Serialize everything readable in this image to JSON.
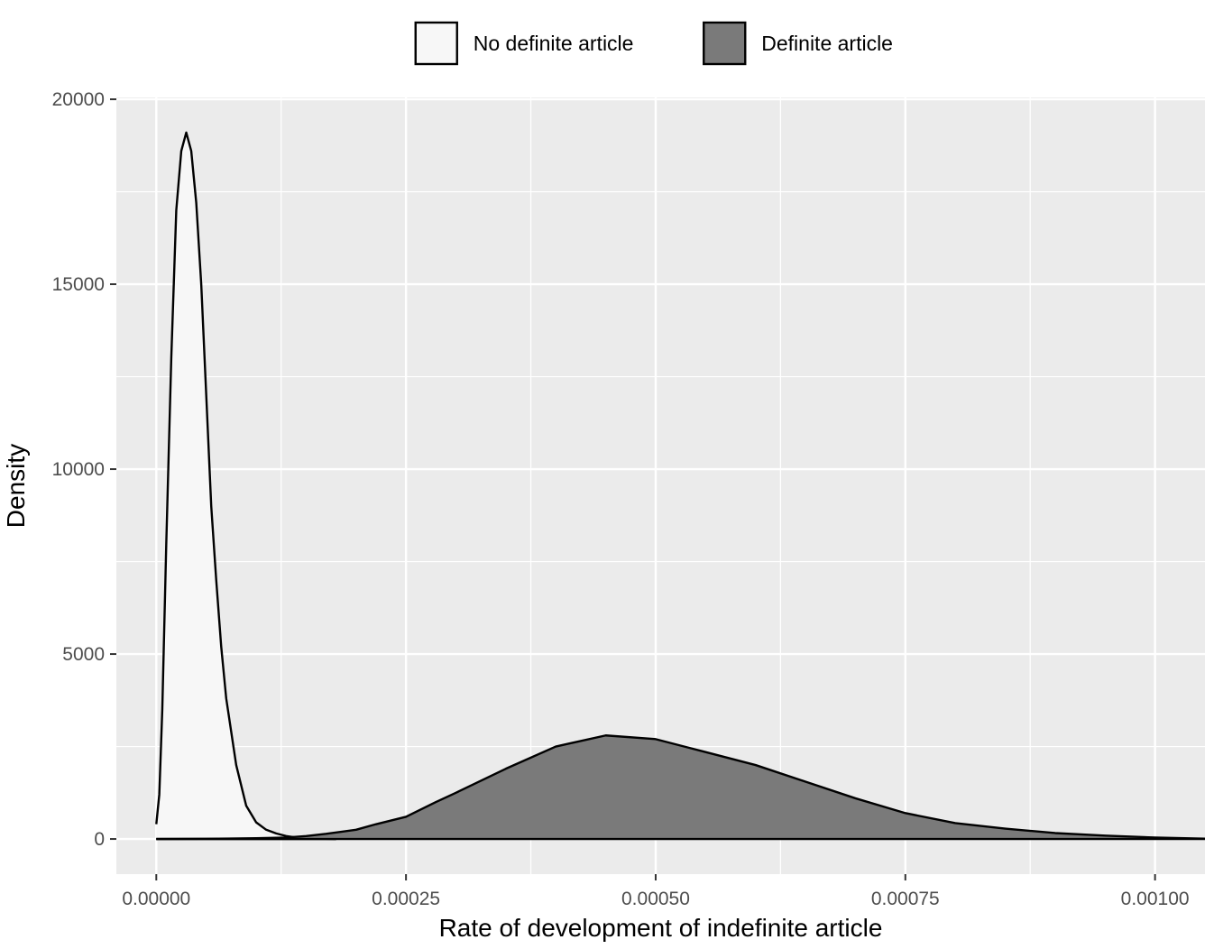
{
  "chart_data": {
    "type": "area",
    "title": "",
    "xlabel": "Rate of development of indefinite article",
    "ylabel": "Density",
    "xlim": [
      -4e-05,
      0.00105
    ],
    "ylim": [
      -950,
      20050
    ],
    "x_ticks": [
      0.0,
      0.00025,
      0.0005,
      0.00075,
      0.001
    ],
    "x_tick_labels": [
      "0.00000",
      "0.00025",
      "0.00050",
      "0.00075",
      "0.00100"
    ],
    "y_ticks": [
      0,
      5000,
      10000,
      15000,
      20000
    ],
    "y_tick_labels": [
      "0",
      "5000",
      "10000",
      "15000",
      "20000"
    ],
    "grid": true,
    "legend_position": "top",
    "panel_background": "#ebebeb",
    "series": [
      {
        "name": "No definite article",
        "fill": "#f7f7f7",
        "x": [
          0.0,
          3e-06,
          6e-06,
          1e-05,
          1.5e-05,
          2e-05,
          2.5e-05,
          3e-05,
          3.5e-05,
          4e-05,
          4.5e-05,
          5e-05,
          5.5e-05,
          6e-05,
          6.5e-05,
          7e-05,
          8e-05,
          9e-05,
          0.0001,
          0.00011,
          0.00012,
          0.00013,
          0.00014,
          0.00015,
          0.00016,
          0.00017,
          0.00018
        ],
        "y": [
          400,
          1200,
          3500,
          8000,
          13000,
          17000,
          18600,
          19100,
          18600,
          17200,
          15000,
          12000,
          9000,
          7000,
          5200,
          3800,
          2000,
          900,
          450,
          250,
          150,
          80,
          40,
          20,
          10,
          5,
          0
        ]
      },
      {
        "name": "Definite article",
        "fill": "#7a7a7a",
        "x": [
          0.0,
          5e-05,
          0.0001,
          0.00013,
          0.00015,
          0.00017,
          0.0002,
          0.00022,
          0.00025,
          0.00028,
          0.0003,
          0.00035,
          0.0004,
          0.00045,
          0.0005,
          0.00055,
          0.0006,
          0.00065,
          0.0007,
          0.00075,
          0.0008,
          0.00085,
          0.0009,
          0.00095,
          0.001,
          0.00105
        ],
        "y": [
          0,
          5,
          20,
          40,
          80,
          140,
          250,
          400,
          600,
          1000,
          1250,
          1900,
          2500,
          2800,
          2700,
          2350,
          2000,
          1550,
          1100,
          700,
          430,
          280,
          160,
          90,
          40,
          10
        ]
      }
    ]
  }
}
